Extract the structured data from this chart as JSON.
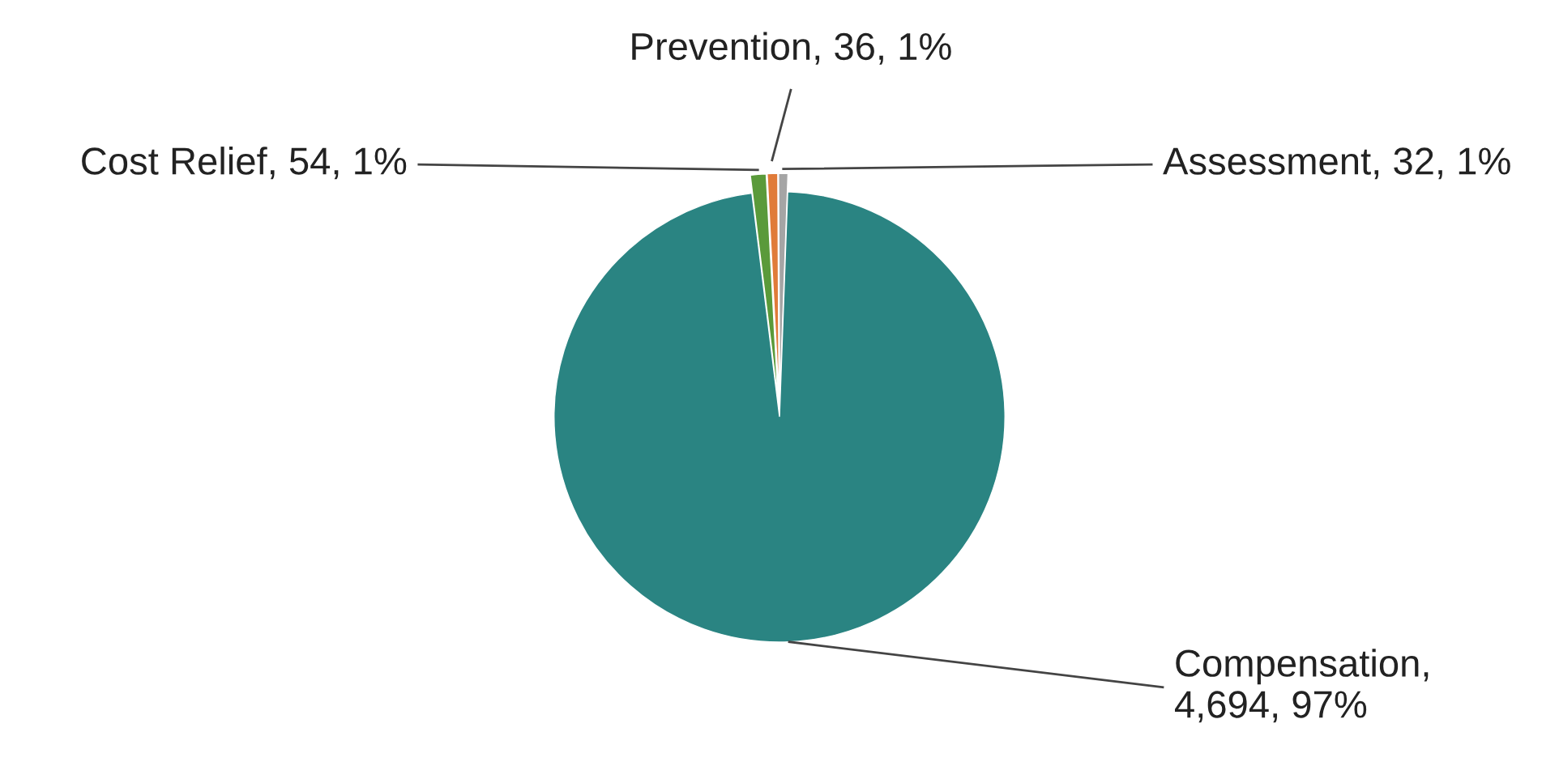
{
  "chart_data": {
    "type": "pie",
    "categories": [
      "Prevention",
      "Assessment",
      "Compensation",
      "Cost Relief"
    ],
    "values": [
      36,
      32,
      4694,
      54
    ],
    "value_labels": [
      ", 36, 1%",
      ", 32, 1%",
      ", 4,694, 97%",
      ", 54, 1%"
    ],
    "colors": [
      "#e07b39",
      "#a5a5a5",
      "#2a8482",
      "#5a9a3a"
    ],
    "legend": false
  }
}
